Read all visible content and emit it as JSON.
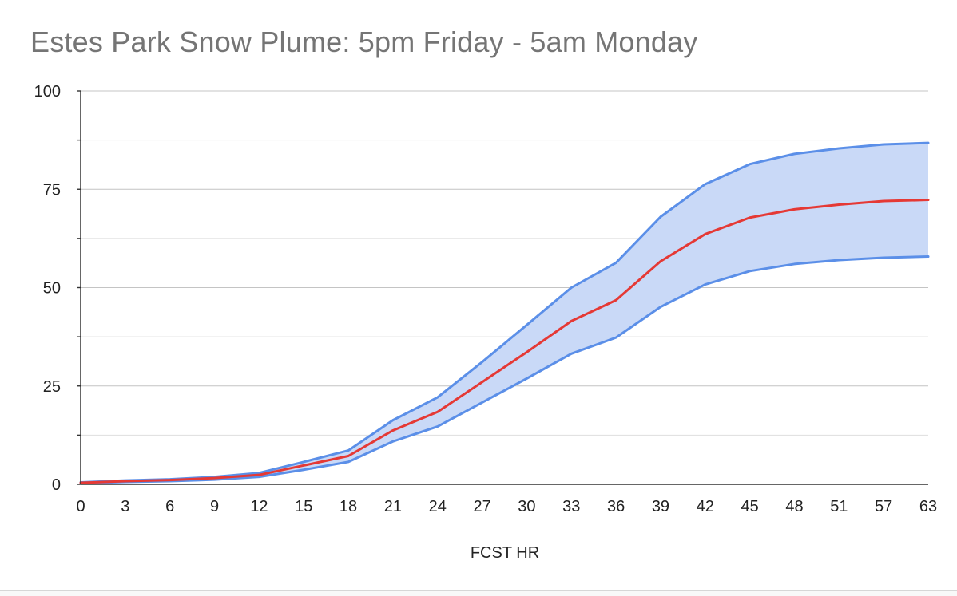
{
  "chart_data": {
    "type": "area",
    "title": "Estes Park Snow Plume: 5pm Friday - 5am Monday",
    "xlabel": "FCST HR",
    "ylabel": "",
    "categories": [
      "0",
      "3",
      "6",
      "9",
      "12",
      "15",
      "18",
      "21",
      "24",
      "27",
      "30",
      "33",
      "36",
      "39",
      "42",
      "45",
      "48",
      "51",
      "57",
      "63"
    ],
    "ylim": [
      0,
      100
    ],
    "yticks": [
      0,
      25,
      50,
      75,
      100
    ],
    "grid": true,
    "legend": "none",
    "series": [
      {
        "role": "upper",
        "color": "#5b8fe8",
        "values": [
          0.5,
          1.0,
          1.3,
          1.9,
          2.9,
          5.7,
          8.6,
          16.3,
          22.1,
          31.1,
          40.5,
          50.0,
          56.3,
          68.0,
          76.3,
          81.4,
          84.0,
          85.4,
          86.4,
          86.8
        ]
      },
      {
        "role": "mean",
        "color": "#e53935",
        "values": [
          0.4,
          0.8,
          1.1,
          1.6,
          2.4,
          4.8,
          7.2,
          13.7,
          18.4,
          26.0,
          33.6,
          41.5,
          46.8,
          56.7,
          63.6,
          67.8,
          69.9,
          71.1,
          72.0,
          72.3
        ]
      },
      {
        "role": "lower",
        "color": "#5b8fe8",
        "values": [
          0.3,
          0.6,
          0.8,
          1.2,
          1.9,
          3.7,
          5.7,
          10.9,
          14.7,
          20.8,
          26.9,
          33.2,
          37.3,
          45.1,
          50.8,
          54.2,
          56.0,
          57.0,
          57.6,
          57.9
        ]
      }
    ],
    "band_color": "#c9d9f7"
  }
}
